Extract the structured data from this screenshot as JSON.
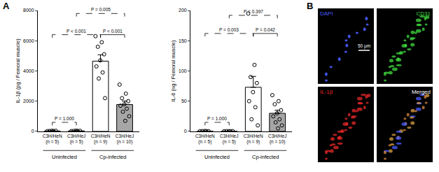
{
  "panel_labels": [
    "A",
    "B"
  ],
  "chart_data": [
    {
      "type": "bar",
      "y_label": "IL-1β (pg / Femoral muscle)",
      "categories": [
        "C3H/HeN (n = 5)",
        "C3H/HeJ (n = 5)",
        "C3H/HeN (n = 9)",
        "C3H/HeJ (n = 10)"
      ],
      "groups": [
        {
          "name": "Uninfected",
          "members": [
            "C3H/HeN (n = 5)",
            "C3H/HeJ (n = 5)"
          ]
        },
        {
          "name": "Cp-infected",
          "members": [
            "C3H/HeN (n = 9)",
            "C3H/HeJ (n = 10)"
          ]
        }
      ],
      "values": [
        30,
        35,
        4650,
        1780
      ],
      "errors": [
        8,
        10,
        420,
        230
      ],
      "colors": [
        "#ffffff",
        "#ffffff",
        "#ffffff",
        "#a6a6a6"
      ],
      "points": [
        [
          15,
          25,
          30,
          40,
          40
        ],
        [
          20,
          30,
          35,
          40,
          50
        ],
        [
          6300,
          5900,
          5600,
          5100,
          4700,
          4300,
          3900,
          3500,
          2200
        ],
        [
          3100,
          2500,
          2200,
          2000,
          1800,
          1700,
          1500,
          1300,
          1000,
          700
        ]
      ],
      "marker": "open circle",
      "ylim": [
        0,
        8000
      ],
      "yticks": [
        0,
        2000,
        4000,
        6000,
        8000
      ],
      "grid": false,
      "comparisons": [
        {
          "from": "C3H/HeN (n = 5)",
          "to": "C3H/HeJ (n = 5)",
          "y": 600,
          "label": "P = 1.000",
          "line_style": "dashed"
        },
        {
          "from": "C3H/HeN (n = 5)",
          "to": "C3H/HeN (n = 9)",
          "y": 6400,
          "label": "P < 0.001",
          "line_style": "dashed"
        },
        {
          "from": "C3H/HeN (n = 9)",
          "to": "C3H/HeJ (n = 10)",
          "y": 6400,
          "label": "P < 0.001",
          "line_style": "solid"
        },
        {
          "from": "C3H/HeJ (n = 5)",
          "to": "C3H/HeJ (n = 10)",
          "y": 7800,
          "label": "P = 0.005",
          "line_style": "dashed"
        }
      ]
    },
    {
      "type": "bar",
      "y_label": "IL-6 (ng / Femoral muscle)",
      "categories": [
        "C3H/HeN (n = 5)",
        "C3H/HeJ (n = 5)",
        "C3H/HeN (n = 9)",
        "C3H/HeJ (n = 10)"
      ],
      "groups": [
        {
          "name": "Uninfected",
          "members": [
            "C3H/HeN (n = 5)",
            "C3H/HeJ (n = 5)"
          ]
        },
        {
          "name": "Cp-infected",
          "members": [
            "C3H/HeN (n = 9)",
            "C3H/HeJ (n = 10)"
          ]
        }
      ],
      "values": [
        0.5,
        0.4,
        73,
        30
      ],
      "errors": [
        0.1,
        0.05,
        18,
        5
      ],
      "colors": [
        "#ffffff",
        "#ffffff",
        "#ffffff",
        "#a6a6a6"
      ],
      "points": [
        [
          0.3,
          0.5,
          0.6,
          0.4,
          0.7
        ],
        [
          0.3,
          0.4,
          0.5,
          0.4,
          0.4
        ],
        [
          195,
          110,
          90,
          80,
          65,
          50,
          40,
          20,
          10
        ],
        [
          60,
          50,
          45,
          35,
          30,
          25,
          20,
          15,
          10,
          5
        ]
      ],
      "marker": "open circle",
      "ylim": [
        0,
        200
      ],
      "yticks": [
        0,
        50,
        100,
        150,
        200
      ],
      "grid": false,
      "comparisons": [
        {
          "from": "C3H/HeN (n = 5)",
          "to": "C3H/HeJ (n = 5)",
          "y": 15,
          "label": "P = 1.000",
          "line_style": "dashed"
        },
        {
          "from": "C3H/HeN (n = 5)",
          "to": "C3H/HeN (n = 9)",
          "y": 162,
          "label": "P = 0.003",
          "line_style": "dashed"
        },
        {
          "from": "C3H/HeN (n = 9)",
          "to": "C3H/HeJ (n = 10)",
          "y": 162,
          "label": "P = 0.042",
          "line_style": "solid"
        },
        {
          "from": "C3H/HeJ (n = 5)",
          "to": "C3H/HeJ (n = 10)",
          "y": 192,
          "label": "P = 0.397",
          "line_style": "dashed"
        }
      ]
    }
  ],
  "images": {
    "panels": [
      {
        "label": "DAPI",
        "color": "#4a5cff"
      },
      {
        "label": "CD31",
        "color": "#3fdc3f"
      },
      {
        "label": "IL-1β",
        "color": "#e82828"
      },
      {
        "label": "Merged",
        "color": "#ffffff"
      }
    ],
    "scale_bar": "50 μm"
  }
}
